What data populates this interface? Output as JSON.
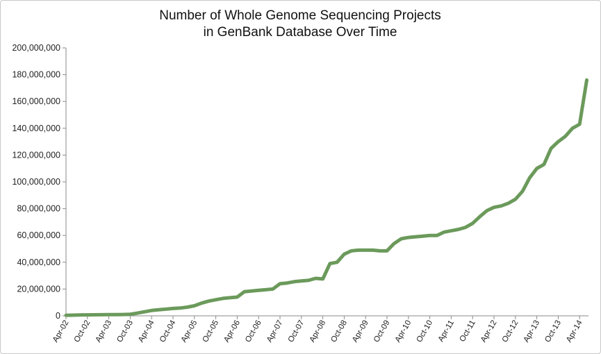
{
  "chart_data": {
    "type": "line",
    "title_lines": [
      "Number of Whole Genome Sequencing Projects",
      "in GenBank Database Over Time"
    ],
    "xlabel": "",
    "ylabel": "",
    "ylim": [
      0,
      200000000
    ],
    "y_ticks": [
      0,
      20000000,
      40000000,
      60000000,
      80000000,
      100000000,
      120000000,
      140000000,
      160000000,
      180000000,
      200000000
    ],
    "y_tick_labels": [
      "0",
      "20,000,000",
      "40,000,000",
      "60,000,000",
      "80,000,000",
      "100,000,000",
      "120,000,000",
      "140,000,000",
      "160,000,000",
      "180,000,000",
      "200,000,000"
    ],
    "x_tick_labels": [
      "Apr-02",
      "Oct-02",
      "Apr-03",
      "Oct-03",
      "Apr-04",
      "Oct-04",
      "Apr-05",
      "Oct-05",
      "Apr-06",
      "Oct-06",
      "Apr-07",
      "Oct-07",
      "Apr-08",
      "Oct-08",
      "Apr-09",
      "Oct-09",
      "Apr-10",
      "Oct-10",
      "Apr-11",
      "Oct-11",
      "Apr-12",
      "Oct-12",
      "Apr-13",
      "Oct-13",
      "Apr-14"
    ],
    "grid": false,
    "legend": "none",
    "line_color": "#6b9a5b",
    "series": [
      {
        "x": [
          "Apr-02",
          "Jun-02",
          "Aug-02",
          "Oct-02",
          "Dec-02",
          "Feb-03",
          "Apr-03",
          "Jun-03",
          "Aug-03",
          "Oct-03",
          "Dec-03",
          "Feb-04",
          "Apr-04",
          "Jun-04",
          "Aug-04",
          "Oct-04",
          "Dec-04",
          "Feb-05",
          "Apr-05",
          "Jun-05",
          "Aug-05",
          "Oct-05",
          "Dec-05",
          "Feb-06",
          "Apr-06",
          "Jun-06",
          "Aug-06",
          "Oct-06",
          "Dec-06",
          "Feb-07",
          "Apr-07",
          "Jun-07",
          "Aug-07",
          "Oct-07",
          "Dec-07",
          "Feb-08",
          "Apr-08",
          "Jun-08",
          "Aug-08",
          "Oct-08",
          "Dec-08",
          "Feb-09",
          "Apr-09",
          "Jun-09",
          "Aug-09",
          "Oct-09",
          "Dec-09",
          "Feb-10",
          "Apr-10",
          "Jun-10",
          "Aug-10",
          "Oct-10",
          "Dec-10",
          "Feb-11",
          "Apr-11",
          "Jun-11",
          "Aug-11",
          "Oct-11",
          "Dec-11",
          "Feb-12",
          "Apr-12",
          "Jun-12",
          "Aug-12",
          "Oct-12",
          "Dec-12",
          "Feb-13",
          "Apr-13",
          "Jun-13",
          "Aug-13",
          "Oct-13",
          "Dec-13",
          "Feb-14",
          "Apr-14",
          "Jun-14"
        ],
        "values": [
          400000,
          500000,
          600000,
          700000,
          800000,
          850000,
          900000,
          900000,
          1000000,
          1200000,
          2000000,
          3000000,
          4000000,
          4500000,
          5000000,
          5500000,
          5800000,
          6500000,
          7500000,
          9500000,
          11000000,
          12000000,
          13000000,
          13500000,
          14000000,
          18000000,
          18500000,
          19000000,
          19500000,
          20000000,
          24000000,
          24500000,
          25500000,
          26000000,
          26500000,
          28000000,
          27500000,
          39000000,
          40000000,
          46000000,
          48500000,
          49000000,
          49000000,
          49000000,
          48500000,
          48500000,
          54000000,
          57500000,
          58500000,
          59000000,
          59500000,
          60000000,
          60000000,
          62500000,
          63500000,
          64500000,
          66000000,
          69000000,
          74000000,
          78500000,
          81000000,
          82000000,
          84000000,
          87000000,
          93000000,
          103000000,
          110000000,
          113000000,
          125000000,
          130000000,
          134000000,
          140000000,
          143000000,
          176000000
        ]
      }
    ]
  }
}
